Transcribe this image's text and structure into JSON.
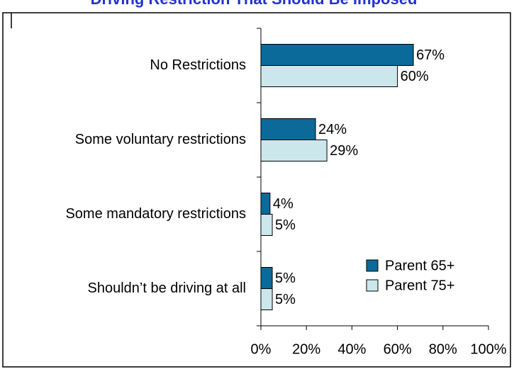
{
  "chart_data": {
    "type": "bar",
    "orientation": "horizontal",
    "title": "Driving Restriction That Should Be Imposed",
    "categories": [
      "No Restrictions",
      "Some voluntary restrictions",
      "Some mandatory restrictions",
      "Shouldn’t be driving at all"
    ],
    "series": [
      {
        "name": "Parent 65+",
        "color": "#0b6a99",
        "values": [
          67,
          24,
          4,
          5
        ],
        "value_labels": [
          "67%",
          "24%",
          "4%",
          "5%"
        ]
      },
      {
        "name": "Parent 75+",
        "color": "#cbe7ec",
        "values": [
          60,
          29,
          5,
          5
        ],
        "value_labels": [
          "60%",
          "29%",
          "5%",
          "5%"
        ]
      }
    ],
    "xlim": [
      0,
      100
    ],
    "xticks": [
      {
        "value": 0,
        "label": "0%"
      },
      {
        "value": 20,
        "label": "20%"
      },
      {
        "value": 40,
        "label": "40%"
      },
      {
        "value": 60,
        "label": "60%"
      },
      {
        "value": 80,
        "label": "80%"
      },
      {
        "value": 100,
        "label": "100%"
      }
    ],
    "legend": "lower right"
  }
}
